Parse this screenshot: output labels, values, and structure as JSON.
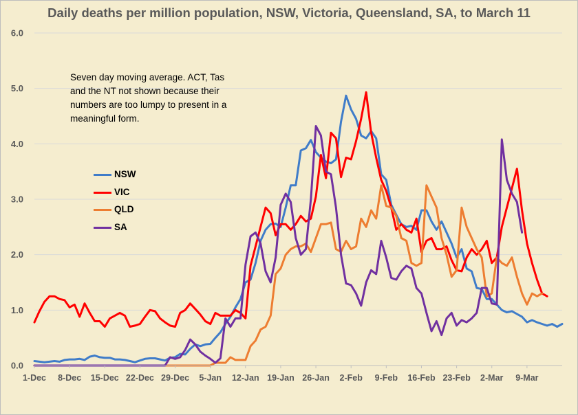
{
  "chart_data": {
    "type": "line",
    "title": "Daily deaths per million population, NSW, Victoria, Queensland, SA, to March 11",
    "annotation": "Seven day moving average. ACT, Tas and the NT not shown because their numbers are too lumpy to present in a meaningful form.",
    "xlabel": "",
    "ylabel": "",
    "ylim": [
      0,
      6
    ],
    "yticks": [
      "0.0",
      "1.0",
      "2.0",
      "3.0",
      "4.0",
      "5.0",
      "6.0"
    ],
    "xticks": [
      "1-Dec",
      "8-Dec",
      "15-Dec",
      "22-Dec",
      "29-Dec",
      "5-Jan",
      "12-Jan",
      "19-Jan",
      "26-Jan",
      "2-Feb",
      "9-Feb",
      "16-Feb",
      "23-Feb",
      "2-Mar",
      "9-Mar"
    ],
    "x_start": "1-Dec",
    "x_end": "11-Mar",
    "grid": "horizontal",
    "legend_position": "left",
    "series": [
      {
        "name": "NSW",
        "color": "#3f7cc9",
        "values": [
          0.08,
          0.07,
          0.06,
          0.07,
          0.08,
          0.07,
          0.1,
          0.11,
          0.11,
          0.12,
          0.1,
          0.16,
          0.18,
          0.15,
          0.14,
          0.14,
          0.11,
          0.11,
          0.1,
          0.08,
          0.06,
          0.09,
          0.12,
          0.13,
          0.13,
          0.11,
          0.09,
          0.14,
          0.15,
          0.21,
          0.2,
          0.3,
          0.38,
          0.35,
          0.38,
          0.39,
          0.5,
          0.6,
          0.75,
          0.88,
          1.05,
          1.2,
          1.5,
          1.55,
          1.85,
          2.25,
          2.45,
          2.55,
          2.56,
          2.5,
          2.85,
          3.25,
          3.25,
          3.88,
          3.92,
          4.07,
          3.85,
          3.75,
          3.68,
          3.65,
          3.72,
          4.4,
          4.87,
          4.62,
          4.45,
          4.15,
          4.1,
          4.23,
          4.1,
          3.45,
          3.35,
          2.9,
          2.72,
          2.55,
          2.5,
          2.52,
          2.45,
          2.8,
          2.8,
          2.6,
          2.45,
          2.6,
          2.4,
          2.2,
          1.95,
          2.1,
          1.75,
          1.7,
          1.4,
          1.38,
          1.2,
          1.2,
          1.1,
          1.0,
          0.96,
          0.98,
          0.93,
          0.88,
          0.78,
          0.82,
          0.78,
          0.75,
          0.72,
          0.75,
          0.7,
          0.75
        ]
      },
      {
        "name": "VIC",
        "color": "#ff0000",
        "values": [
          0.78,
          0.98,
          1.15,
          1.25,
          1.25,
          1.2,
          1.18,
          1.05,
          1.1,
          0.88,
          1.12,
          0.95,
          0.8,
          0.8,
          0.7,
          0.85,
          0.9,
          0.95,
          0.9,
          0.7,
          0.72,
          0.75,
          0.88,
          1.0,
          0.98,
          0.85,
          0.78,
          0.72,
          0.7,
          0.95,
          1.0,
          1.12,
          1.02,
          0.92,
          0.8,
          0.75,
          0.95,
          0.9,
          0.9,
          0.9,
          1.0,
          0.95,
          0.85,
          1.8,
          2.15,
          2.5,
          2.85,
          2.75,
          2.35,
          2.55,
          2.55,
          2.45,
          2.55,
          2.7,
          2.6,
          2.65,
          3.05,
          3.8,
          3.38,
          4.2,
          4.1,
          3.4,
          3.75,
          3.72,
          4.05,
          4.45,
          4.93,
          4.2,
          3.75,
          3.35,
          3.15,
          2.85,
          2.45,
          2.55,
          2.45,
          2.4,
          2.65,
          2.05,
          2.25,
          2.3,
          2.1,
          2.1,
          2.15,
          1.9,
          1.72,
          1.7,
          1.95,
          2.1,
          2.0,
          2.1,
          2.25,
          1.85,
          1.95,
          2.5,
          2.85,
          3.2,
          3.55,
          2.8,
          2.2,
          1.85,
          1.55,
          1.3,
          1.25
        ]
      },
      {
        "name": "QLD",
        "color": "#ed7d31",
        "values": [
          0,
          0,
          0,
          0,
          0,
          0,
          0,
          0,
          0,
          0,
          0,
          0,
          0,
          0,
          0,
          0,
          0,
          0,
          0,
          0,
          0,
          0,
          0,
          0,
          0,
          0,
          0,
          0,
          0,
          0,
          0,
          0,
          0,
          0,
          0,
          0,
          0.05,
          0.05,
          0.05,
          0.15,
          0.1,
          0.1,
          0.1,
          0.35,
          0.45,
          0.65,
          0.7,
          0.9,
          1.65,
          1.75,
          2.0,
          2.1,
          2.15,
          2.15,
          2.2,
          2.05,
          2.3,
          2.55,
          2.55,
          2.58,
          2.1,
          2.05,
          2.25,
          2.1,
          2.15,
          2.65,
          2.5,
          2.8,
          2.65,
          3.25,
          2.88,
          2.85,
          2.7,
          2.3,
          2.25,
          1.85,
          1.8,
          1.85,
          3.25,
          3.05,
          2.85,
          2.3,
          2.0,
          1.6,
          1.72,
          2.85,
          2.5,
          2.3,
          2.1,
          1.95,
          1.25,
          1.3,
          1.95,
          1.85,
          1.8,
          1.95,
          1.6,
          1.3,
          1.1,
          1.3,
          1.25,
          1.3
        ]
      },
      {
        "name": "SA",
        "color": "#7030a0",
        "values": [
          0,
          0,
          0,
          0,
          0,
          0,
          0,
          0,
          0,
          0,
          0,
          0,
          0,
          0,
          0,
          0,
          0,
          0,
          0,
          0,
          0,
          0,
          0,
          0,
          0,
          0,
          0,
          0.15,
          0.12,
          0.15,
          0.28,
          0.47,
          0.38,
          0.25,
          0.18,
          0.12,
          0.05,
          0.13,
          0.85,
          0.7,
          0.85,
          0.85,
          1.82,
          2.33,
          2.4,
          2.2,
          1.7,
          1.5,
          1.95,
          2.9,
          3.1,
          2.95,
          2.3,
          2.0,
          2.1,
          3.0,
          4.32,
          4.15,
          3.5,
          3.45,
          2.85,
          2.0,
          1.48,
          1.45,
          1.3,
          1.08,
          1.5,
          1.72,
          1.65,
          2.25,
          1.95,
          1.58,
          1.55,
          1.7,
          1.8,
          1.75,
          1.4,
          1.3,
          0.95,
          0.62,
          0.8,
          0.55,
          0.85,
          0.95,
          0.72,
          0.82,
          0.78,
          0.85,
          0.95,
          1.4,
          1.4,
          1.12,
          1.1,
          4.08,
          3.35,
          3.1,
          2.95,
          2.4
        ]
      }
    ]
  }
}
